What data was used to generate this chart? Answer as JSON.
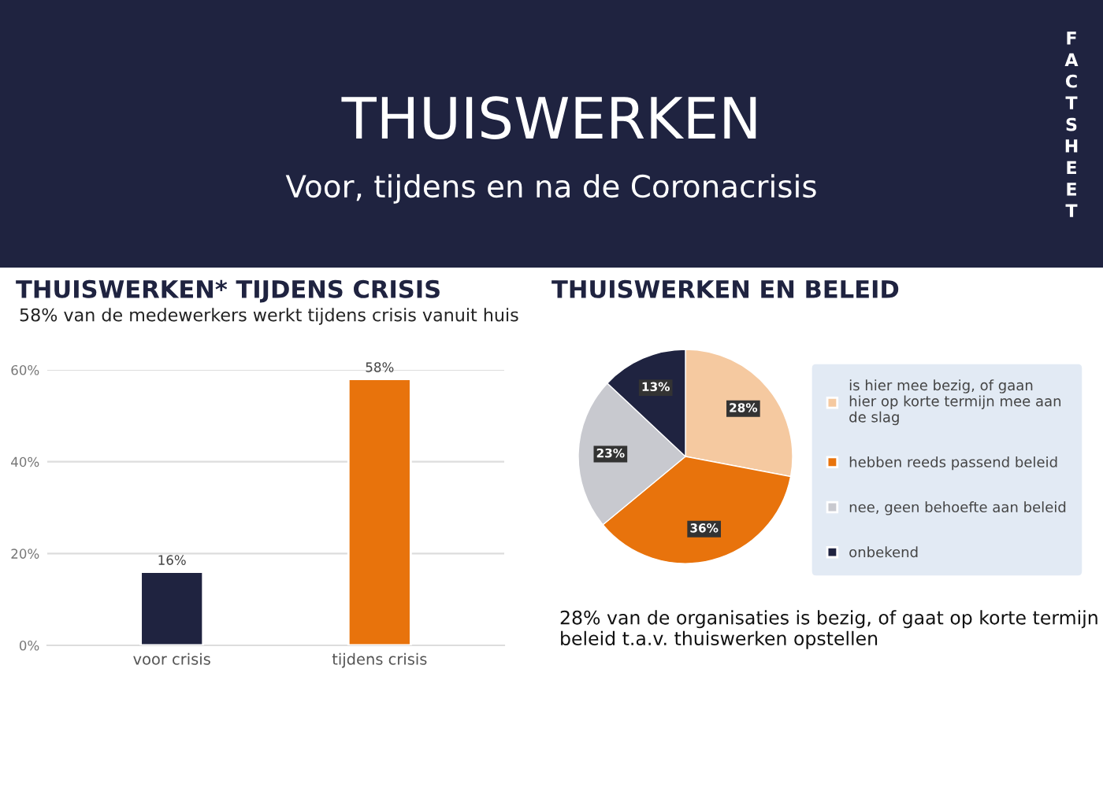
{
  "chart_data": [
    {
      "type": "bar",
      "title": "THUISWERKEN* TIJDENS CRISIS",
      "subtitle": "58% van de medewerkers werkt tijdens crisis vanuit huis",
      "annotations": [
        "THUISWERKEN",
        "Voor, tijdens en na de Coronacrisis",
        "FACTSHEET"
      ],
      "categories": [
        "voor crisis",
        "tijdens crisis"
      ],
      "values": [
        16,
        58
      ],
      "colors": [
        "#1f2340",
        "#e8730c"
      ],
      "value_labels": [
        "16%",
        "58%"
      ],
      "ylim": [
        0,
        60
      ],
      "yticks": [
        {
          "value": 0,
          "label": "0%"
        },
        {
          "value": 20,
          "label": "20%"
        },
        {
          "value": 40,
          "label": "40%"
        },
        {
          "value": 60,
          "label": "60%"
        }
      ],
      "grid": "y"
    },
    {
      "type": "pie",
      "title": "THUISWERKEN EN BELEID",
      "annotations": [
        "28% van de organisaties is bezig, of gaat op korte termijn beleid t.a.v. thuiswerken opstellen"
      ],
      "categories": [
        "is hier mee bezig, of gaan hier op korte termijn mee aan de slag",
        "hebben reeds passend beleid",
        "nee, geen behoefte aan beleid",
        "onbekend"
      ],
      "values": [
        28,
        36,
        23,
        13
      ],
      "colors": [
        "#f5c9a0",
        "#e8730c",
        "#c8c9cf",
        "#1f2340"
      ],
      "value_labels": [
        "28%",
        "36%",
        "23%",
        "13%"
      ],
      "legend": "right"
    }
  ]
}
